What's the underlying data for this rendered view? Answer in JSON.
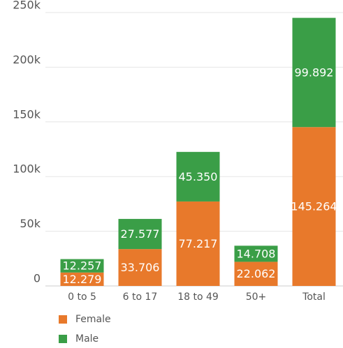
{
  "chart_data": {
    "type": "stacked_bar",
    "categories": [
      "0 to 5",
      "6 to 17",
      "18 to 49",
      "50+",
      "Total"
    ],
    "series": [
      {
        "name": "Female",
        "color": "#e8792b",
        "values": [
          12279,
          33706,
          77217,
          22062,
          145264
        ],
        "value_labels": [
          "12.279",
          "33.706",
          "77.217",
          "22.062",
          "145.264"
        ]
      },
      {
        "name": "Male",
        "color": "#3a9e47",
        "values": [
          12257,
          27577,
          45350,
          14708,
          99892
        ],
        "value_labels": [
          "12.257",
          "27.577",
          "45.350",
          "14.708",
          "99.892"
        ]
      }
    ],
    "ylim": [
      0,
      250000
    ],
    "yticks": [
      0,
      {
        "value": 50000,
        "label": "50k"
      },
      {
        "value": 100000,
        "label": "100k"
      },
      {
        "value": 150000,
        "label": "150k"
      },
      {
        "value": 200000,
        "label": "200k"
      },
      {
        "value": 250000,
        "label": "250k"
      }
    ],
    "grid": true
  }
}
